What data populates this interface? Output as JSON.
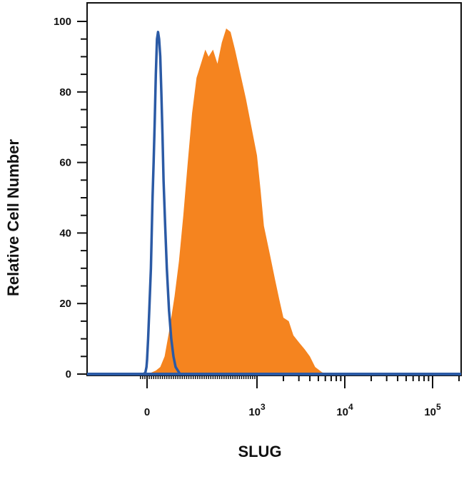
{
  "chart_data": {
    "type": "area",
    "title": "",
    "xlabel": "SLUG",
    "ylabel": "Relative Cell Number",
    "xscale": "biexponential",
    "xlim": [
      -60,
      150000
    ],
    "ylim": [
      0,
      100
    ],
    "grid": false,
    "legend": "none",
    "y_ticks": [
      {
        "value": 0,
        "label": "0"
      },
      {
        "value": 20,
        "label": "20"
      },
      {
        "value": 40,
        "label": "40"
      },
      {
        "value": 60,
        "label": "60"
      },
      {
        "value": 80,
        "label": "80"
      },
      {
        "value": 100,
        "label": "100"
      }
    ],
    "x_ticks": [
      {
        "value": 0,
        "base": "0",
        "exp": ""
      },
      {
        "value": 1000,
        "base": "10",
        "exp": "3"
      },
      {
        "value": 10000,
        "base": "10",
        "exp": "4"
      },
      {
        "value": 100000,
        "base": "10",
        "exp": "5"
      }
    ],
    "series": [
      {
        "style": "filled",
        "color": "#f5841f",
        "x": [
          0,
          45,
          80,
          120,
          160,
          200,
          250,
          290,
          330,
          370,
          410,
          450,
          490,
          530,
          560,
          600,
          640,
          680,
          720,
          760,
          800,
          850,
          900,
          950,
          1000,
          1100,
          1200,
          1400,
          1600,
          1800,
          2000,
          2300,
          2600,
          3000,
          3500,
          4000,
          4600,
          5500,
          6500
        ],
        "y": [
          0,
          0.5,
          1,
          2,
          5,
          12,
          22,
          32,
          45,
          60,
          74,
          84,
          88,
          92,
          90,
          92,
          88,
          94,
          98,
          97,
          92,
          85,
          78,
          70,
          62,
          52,
          42,
          34,
          27,
          21,
          16,
          15,
          11,
          9,
          7,
          5,
          2,
          0.5,
          0
        ]
      },
      {
        "style": "outline",
        "color": "#2b5aa5",
        "x": [
          -30,
          -15,
          -5,
          0,
          10,
          20,
          35,
          50,
          60,
          70,
          80,
          90,
          100,
          110,
          120,
          130,
          140,
          150,
          165,
          180,
          200,
          220,
          240,
          260,
          280,
          300
        ],
        "y": [
          0,
          0.5,
          2,
          4,
          10,
          18,
          30,
          50,
          60,
          72,
          85,
          95,
          97,
          95,
          90,
          80,
          68,
          55,
          42,
          30,
          18,
          10,
          5,
          2,
          1,
          0
        ]
      }
    ]
  }
}
